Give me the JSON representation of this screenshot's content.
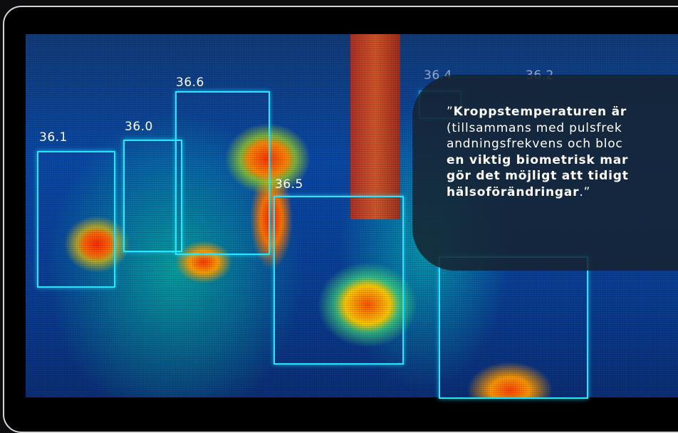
{
  "quote": {
    "open_mark": "”",
    "bold_1": "Kroppstemperaturen är",
    "line_2": "(tillsammans med pulsfrek",
    "line_3": "andningsfrekvens och bloc",
    "bold_2": "en viktig biometrisk mar",
    "bold_3": "gör det möjligt att tidigt",
    "bold_4": "hälsoförändringar",
    "close": ".”"
  },
  "readings": [
    {
      "value": "36.1"
    },
    {
      "value": "36.0"
    },
    {
      "value": "36.6"
    },
    {
      "value": "36.5"
    },
    {
      "value": "36.4"
    },
    {
      "value": "36.2"
    }
  ],
  "colors": {
    "box": "#27e6ff",
    "card": "#16232f",
    "frame": "#d6d6d6"
  }
}
